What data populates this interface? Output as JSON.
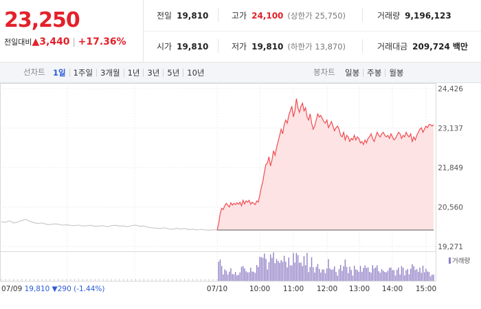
{
  "quote": {
    "price": "23,250",
    "change_label": "전일대비",
    "change_arrow": "▲",
    "change_amount": "3,440",
    "change_separator": "|",
    "change_percent": "+17.36%"
  },
  "stats": {
    "prev_close": {
      "label": "전일",
      "value": "19,810"
    },
    "high": {
      "label": "고가",
      "value": "24,100",
      "sub": "(상한가 25,750)"
    },
    "volume": {
      "label": "거래량",
      "value": "9,196,123"
    },
    "open": {
      "label": "시가",
      "value": "19,810"
    },
    "low": {
      "label": "저가",
      "value": "19,810",
      "sub": "(하한가 13,870)"
    },
    "trade_amount": {
      "label": "거래대금",
      "value": "209,724",
      "unit": "백만"
    }
  },
  "toolbar": {
    "line_chart_label": "선차트",
    "periods": [
      "1일",
      "1주일",
      "3개월",
      "1년",
      "3년",
      "5년",
      "10년"
    ],
    "active_period": "1일",
    "candle_chart_label": "봉차트",
    "candles": [
      "일봉",
      "주봉",
      "월봉"
    ]
  },
  "chart_data": {
    "type": "line",
    "y_ticks": [
      "24,426",
      "23,137",
      "21,849",
      "20,560",
      "19,271"
    ],
    "ylim": [
      19271,
      24426
    ],
    "x_ticks": [
      "07/10",
      "10:00",
      "11:00",
      "12:00",
      "13:00",
      "14:00",
      "15:00"
    ],
    "prev_day": {
      "label": "07/09",
      "close": "19,810",
      "change": "▼290",
      "change_percent": "(-1.44%)"
    },
    "volume_legend": "거래량",
    "colors": {
      "today_line": "#f04a4f",
      "today_fill": "#fde3e4",
      "prev_line": "#c9c9c9",
      "volume": "#8f7fc6",
      "down": "#2a5bd7"
    },
    "prev_series": [
      20080,
      20060,
      20110,
      20040,
      20070,
      20120,
      20160,
      20090,
      20050,
      20020,
      20040,
      20000,
      19990,
      20010,
      20000,
      19970,
      19980,
      19960,
      19950,
      19970,
      19940,
      19950,
      19960,
      19930,
      19940,
      19950,
      19920,
      19950,
      19960,
      19940,
      19940,
      19920,
      19950,
      19970,
      19930,
      19940,
      19900,
      19880,
      19870,
      19860,
      19880,
      19850,
      19830,
      19870,
      19840,
      19860,
      19820,
      19840,
      19810,
      19830,
      19810,
      19800,
      19820,
      19810
    ],
    "today_series": [
      19810,
      20020,
      20350,
      20520,
      20480,
      20600,
      20680,
      20620,
      20560,
      20700,
      20620,
      20680,
      20640,
      20700,
      20650,
      20720,
      20600,
      20780,
      20660,
      20760,
      20720,
      20780,
      20650,
      20720,
      20680,
      20640,
      20760,
      20720,
      20950,
      21200,
      21400,
      21700,
      21950,
      22000,
      22200,
      21900,
      22100,
      22400,
      22250,
      22500,
      22700,
      22900,
      23100,
      22950,
      23250,
      23400,
      23300,
      23550,
      23700,
      23850,
      23500,
      23700,
      24100,
      23800,
      23650,
      23850,
      23950,
      23700,
      23800,
      23500,
      23400,
      23600,
      23300,
      23100,
      23200,
      23400,
      23600,
      23500,
      23550,
      23450,
      23350,
      23300,
      23400,
      23150,
      23250,
      23350,
      23200,
      23050,
      23150,
      23200,
      23100,
      22900,
      22850,
      23000,
      22750,
      22900,
      22850,
      22700,
      22800,
      22750,
      22900,
      22750,
      22850,
      22800,
      22650,
      22700,
      22600,
      22750,
      22650,
      22800,
      22850,
      22950,
      22800,
      22700,
      22850,
      23000,
      22900,
      22850,
      22950,
      23000,
      22900,
      22850,
      22900,
      22800,
      22950,
      22850,
      22750,
      22800,
      22900,
      23000,
      22950,
      22800,
      22900,
      22850,
      23000,
      22900,
      22850,
      22950,
      22700,
      22850,
      22750,
      22900,
      23000,
      23100,
      23150,
      23000,
      23100,
      23200,
      23150,
      23250,
      23250,
      23200,
      23250
    ]
  }
}
